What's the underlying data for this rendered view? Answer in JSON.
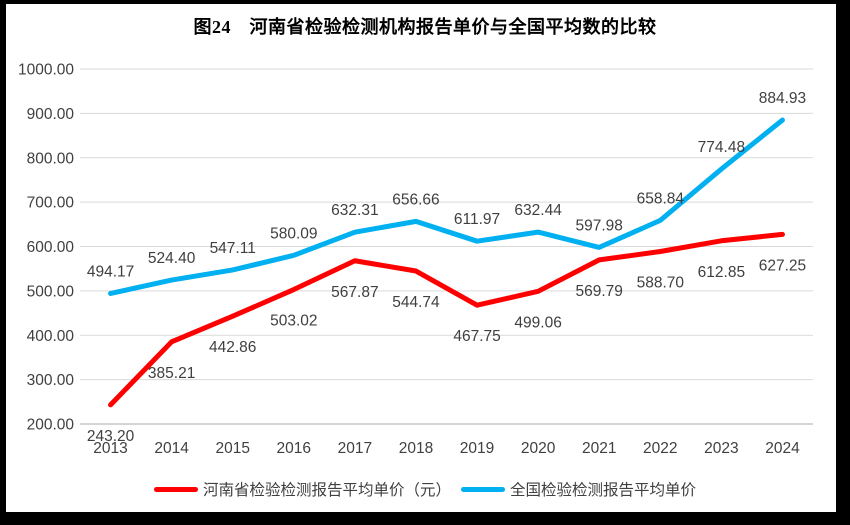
{
  "frame": {
    "border_color": "#000000",
    "background": "#ffffff"
  },
  "chart_data": {
    "type": "line",
    "title": "图24　河南省检验检测机构报告单价与全国平均数的比较",
    "categories": [
      "2013",
      "2014",
      "2015",
      "2016",
      "2017",
      "2018",
      "2019",
      "2020",
      "2021",
      "2022",
      "2023",
      "2024"
    ],
    "series": [
      {
        "key": "henan",
        "name": "河南省检验检测报告平均单价（元）",
        "color": "#FF0000",
        "label_position": "below",
        "values": [
          243.2,
          385.21,
          442.86,
          503.02,
          567.87,
          544.74,
          467.75,
          499.06,
          569.79,
          588.7,
          612.85,
          627.25
        ]
      },
      {
        "key": "national",
        "name": "全国检验检测报告平均单价",
        "color": "#00B0F0",
        "label_position": "above",
        "values": [
          494.17,
          524.4,
          547.11,
          580.09,
          632.31,
          656.66,
          611.97,
          632.44,
          597.98,
          658.84,
          774.48,
          884.93
        ]
      }
    ],
    "ylim": [
      200,
      1000
    ],
    "ytick_labels": [
      "200.00",
      "300.00",
      "400.00",
      "500.00",
      "600.00",
      "700.00",
      "800.00",
      "900.00",
      "1000.00"
    ],
    "xlabel": "",
    "ylabel": "",
    "grid": "horizontal",
    "gridline_color": "#D9D9D9",
    "axis_line_color": "#C6C6C6",
    "tick_label_color": "#404040",
    "legend_position": "bottom"
  }
}
